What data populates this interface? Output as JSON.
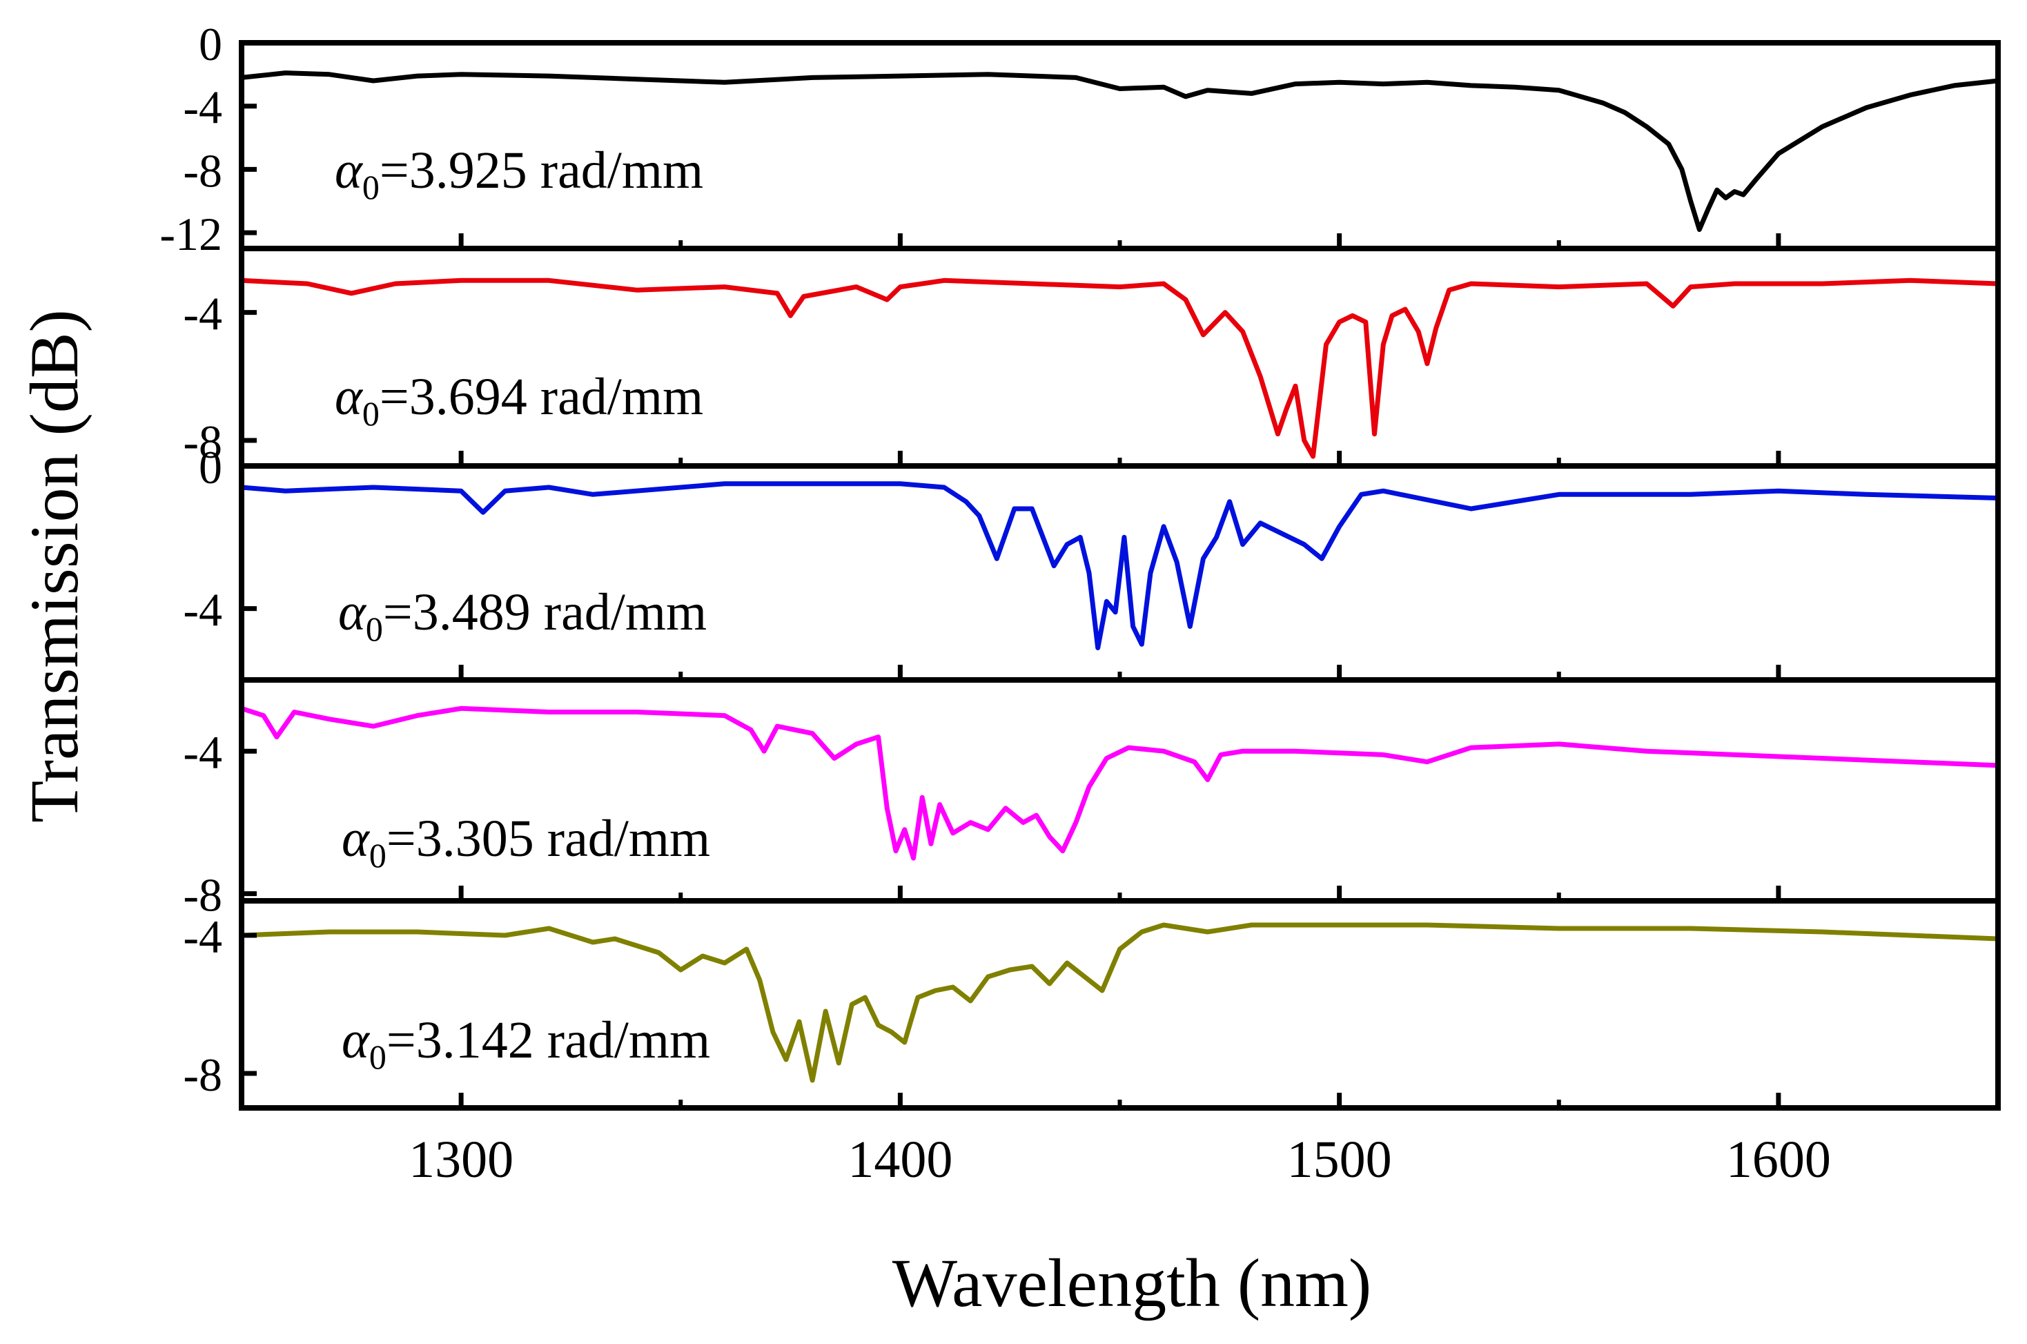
{
  "chart_data": {
    "type": "line",
    "xlabel": "Wavelength (nm)",
    "ylabel": "Transmission (dB)",
    "xlim": [
      1250,
      1650
    ],
    "x_ticks": [
      1300,
      1400,
      1500,
      1600
    ],
    "x_tick_labels": [
      "1300",
      "1400",
      "1500",
      "1600"
    ],
    "panels": [
      {
        "name": "alpha-3.925",
        "alpha_symbol": "α",
        "alpha_sub": "0",
        "alpha_value": "=3.925 rad/mm",
        "color": "#000000",
        "ylim": [
          -13,
          0
        ],
        "y_ticks": [
          0,
          -4,
          -8,
          -12
        ],
        "y_tick_labels": [
          "0",
          "-4",
          "-8",
          "-12"
        ],
        "x": [
          1250,
          1260,
          1270,
          1280,
          1290,
          1300,
          1320,
          1340,
          1360,
          1380,
          1400,
          1420,
          1440,
          1450,
          1460,
          1465,
          1470,
          1480,
          1490,
          1500,
          1510,
          1520,
          1530,
          1540,
          1550,
          1560,
          1565,
          1570,
          1575,
          1578,
          1580,
          1582,
          1584,
          1586,
          1588,
          1590,
          1592,
          1595,
          1600,
          1610,
          1620,
          1630,
          1640,
          1650
        ],
        "y": [
          -2.2,
          -1.9,
          -2.0,
          -2.4,
          -2.1,
          -2.0,
          -2.1,
          -2.3,
          -2.5,
          -2.2,
          -2.1,
          -2.0,
          -2.2,
          -2.9,
          -2.8,
          -3.4,
          -3.0,
          -3.2,
          -2.6,
          -2.5,
          -2.6,
          -2.5,
          -2.7,
          -2.8,
          -3.0,
          -3.8,
          -4.4,
          -5.3,
          -6.4,
          -8.0,
          -10.0,
          -11.8,
          -10.5,
          -9.3,
          -9.8,
          -9.4,
          -9.6,
          -8.6,
          -7.0,
          -5.3,
          -4.1,
          -3.3,
          -2.7,
          -2.4
        ]
      },
      {
        "name": "alpha-3.694",
        "alpha_symbol": "α",
        "alpha_sub": "0",
        "alpha_value": "=3.694 rad/mm",
        "color": "#e8000b",
        "ylim": [
          -8.8,
          -2.0
        ],
        "y_ticks": [
          -4,
          -8
        ],
        "y_tick_labels": [
          "-4",
          "-8"
        ],
        "x": [
          1250,
          1265,
          1275,
          1285,
          1300,
          1320,
          1340,
          1360,
          1372,
          1375,
          1378,
          1390,
          1397,
          1400,
          1410,
          1430,
          1450,
          1460,
          1465,
          1469,
          1474,
          1478,
          1482,
          1486,
          1488,
          1490,
          1492,
          1494,
          1497,
          1500,
          1503,
          1506,
          1508,
          1510,
          1512,
          1515,
          1518,
          1520,
          1522,
          1525,
          1530,
          1550,
          1570,
          1576,
          1580,
          1590,
          1610,
          1630,
          1650
        ],
        "y": [
          -3.0,
          -3.1,
          -3.4,
          -3.1,
          -3.0,
          -3.0,
          -3.3,
          -3.2,
          -3.4,
          -4.1,
          -3.5,
          -3.2,
          -3.6,
          -3.2,
          -3.0,
          -3.1,
          -3.2,
          -3.1,
          -3.6,
          -4.7,
          -4.0,
          -4.6,
          -6.0,
          -7.8,
          -7.0,
          -6.3,
          -8.0,
          -8.5,
          -5.0,
          -4.3,
          -4.1,
          -4.3,
          -7.8,
          -5.0,
          -4.1,
          -3.9,
          -4.6,
          -5.6,
          -4.5,
          -3.3,
          -3.1,
          -3.2,
          -3.1,
          -3.8,
          -3.2,
          -3.1,
          -3.1,
          -3.0,
          -3.1
        ]
      },
      {
        "name": "alpha-3.489",
        "alpha_symbol": "α",
        "alpha_sub": "0",
        "alpha_value": "=3.489 rad/mm",
        "color": "#0011dd",
        "ylim": [
          -6.0,
          0
        ],
        "y_ticks": [
          0,
          -4
        ],
        "y_tick_labels": [
          "0",
          "-4"
        ],
        "x": [
          1250,
          1260,
          1280,
          1300,
          1305,
          1310,
          1320,
          1330,
          1360,
          1400,
          1410,
          1415,
          1418,
          1422,
          1426,
          1430,
          1435,
          1438,
          1441,
          1443,
          1445,
          1447,
          1449,
          1451,
          1453,
          1455,
          1457,
          1460,
          1463,
          1466,
          1469,
          1472,
          1475,
          1478,
          1482,
          1487,
          1492,
          1496,
          1500,
          1505,
          1510,
          1530,
          1550,
          1580,
          1600,
          1620,
          1650
        ],
        "y": [
          -0.6,
          -0.7,
          -0.6,
          -0.7,
          -1.3,
          -0.7,
          -0.6,
          -0.8,
          -0.5,
          -0.5,
          -0.6,
          -1.0,
          -1.4,
          -2.6,
          -1.2,
          -1.2,
          -2.8,
          -2.2,
          -2.0,
          -3.0,
          -5.1,
          -3.8,
          -4.1,
          -2.0,
          -4.5,
          -5.0,
          -3.0,
          -1.7,
          -2.7,
          -4.5,
          -2.6,
          -2.0,
          -1.0,
          -2.2,
          -1.6,
          -1.9,
          -2.2,
          -2.6,
          -1.7,
          -0.8,
          -0.7,
          -1.2,
          -0.8,
          -0.8,
          -0.7,
          -0.8,
          -0.9
        ]
      },
      {
        "name": "alpha-3.305",
        "alpha_symbol": "α",
        "alpha_sub": "0",
        "alpha_value": "=3.305 rad/mm",
        "color": "#ff00ff",
        "ylim": [
          -8.2,
          -2.0
        ],
        "y_ticks": [
          -4,
          -8
        ],
        "y_tick_labels": [
          "-4",
          "-8"
        ],
        "x": [
          1250,
          1255,
          1258,
          1262,
          1270,
          1280,
          1290,
          1300,
          1320,
          1340,
          1360,
          1366,
          1369,
          1372,
          1380,
          1385,
          1390,
          1395,
          1397,
          1399,
          1401,
          1403,
          1405,
          1407,
          1409,
          1412,
          1416,
          1420,
          1424,
          1428,
          1431,
          1434,
          1437,
          1440,
          1443,
          1447,
          1452,
          1460,
          1467,
          1470,
          1473,
          1478,
          1490,
          1510,
          1520,
          1530,
          1550,
          1570,
          1590,
          1610,
          1630,
          1650
        ],
        "y": [
          -2.8,
          -3.0,
          -3.6,
          -2.9,
          -3.1,
          -3.3,
          -3.0,
          -2.8,
          -2.9,
          -2.9,
          -3.0,
          -3.4,
          -4.0,
          -3.3,
          -3.5,
          -4.2,
          -3.8,
          -3.6,
          -5.6,
          -6.8,
          -6.2,
          -7.0,
          -5.3,
          -6.6,
          -5.5,
          -6.3,
          -6.0,
          -6.2,
          -5.6,
          -6.0,
          -5.8,
          -6.4,
          -6.8,
          -6.0,
          -5.0,
          -4.2,
          -3.9,
          -4.0,
          -4.3,
          -4.8,
          -4.1,
          -4.0,
          -4.0,
          -4.1,
          -4.3,
          -3.9,
          -3.8,
          -4.0,
          -4.1,
          -4.2,
          -4.3,
          -4.4
        ]
      },
      {
        "name": "alpha-3.142",
        "alpha_symbol": "α",
        "alpha_sub": "0",
        "alpha_value": "=3.142 rad/mm",
        "color": "#808000",
        "ylim": [
          -9.0,
          -3.0
        ],
        "y_ticks": [
          -4,
          -8
        ],
        "y_tick_labels": [
          "-4",
          "-8"
        ],
        "x": [
          1250,
          1270,
          1290,
          1310,
          1320,
          1330,
          1335,
          1340,
          1345,
          1350,
          1355,
          1360,
          1365,
          1368,
          1371,
          1374,
          1377,
          1380,
          1383,
          1386,
          1389,
          1392,
          1395,
          1398,
          1401,
          1404,
          1408,
          1412,
          1416,
          1420,
          1425,
          1430,
          1434,
          1438,
          1442,
          1446,
          1450,
          1455,
          1460,
          1470,
          1480,
          1500,
          1520,
          1550,
          1580,
          1610,
          1630,
          1650
        ],
        "y": [
          -4.0,
          -3.9,
          -3.9,
          -4.0,
          -3.8,
          -4.2,
          -4.1,
          -4.3,
          -4.5,
          -5.0,
          -4.6,
          -4.8,
          -4.4,
          -5.3,
          -6.8,
          -7.6,
          -6.5,
          -8.2,
          -6.2,
          -7.7,
          -6.0,
          -5.8,
          -6.6,
          -6.8,
          -7.1,
          -5.8,
          -5.6,
          -5.5,
          -5.9,
          -5.2,
          -5.0,
          -4.9,
          -5.4,
          -4.8,
          -5.2,
          -5.6,
          -4.4,
          -3.9,
          -3.7,
          -3.9,
          -3.7,
          -3.7,
          -3.7,
          -3.8,
          -3.8,
          -3.9,
          -4.0,
          -4.1
        ]
      }
    ]
  }
}
